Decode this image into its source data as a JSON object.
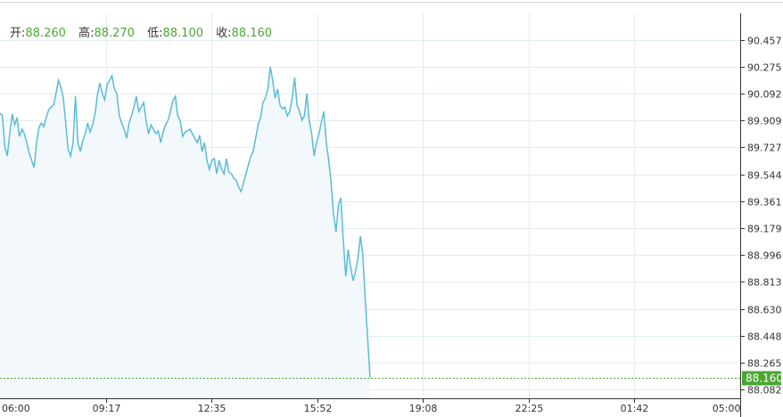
{
  "header": {
    "open_label": "开",
    "open_value": "88.260",
    "high_label": "高",
    "high_value": "88.270",
    "low_label": "低",
    "low_value": "88.100",
    "close_label": "收",
    "close_value": "88.160"
  },
  "chart_data": {
    "type": "area",
    "ylim": [
      88.082,
      90.457
    ],
    "y_ticks": [
      "90.457",
      "90.275",
      "90.092",
      "89.909",
      "89.727",
      "89.544",
      "89.361",
      "89.179",
      "88.996",
      "88.813",
      "88.630",
      "88.448",
      "88.265",
      "88.082"
    ],
    "x_ticks": [
      "06:00",
      "09:17",
      "12:35",
      "15:52",
      "19:08",
      "22:25",
      "01:42",
      "05:00"
    ],
    "grid": true,
    "current_price": "88.160",
    "colors": {
      "line": "#5bbcd6",
      "fill": "#f2f8fc",
      "grid": "#e3edf3",
      "current": "#4aa832"
    },
    "values": [
      89.96,
      89.942,
      89.73,
      89.669,
      89.821,
      89.954,
      89.881,
      89.93,
      89.802,
      89.851,
      89.821,
      89.76,
      89.687,
      89.639,
      89.59,
      89.76,
      89.863,
      89.893,
      89.869,
      89.93,
      89.984,
      90.002,
      90.015,
      90.093,
      90.184,
      90.136,
      90.063,
      89.893,
      89.712,
      89.669,
      89.76,
      90.075,
      89.76,
      89.699,
      89.772,
      89.821,
      89.893,
      89.833,
      89.881,
      89.954,
      90.081,
      90.166,
      90.093,
      90.051,
      90.154,
      90.184,
      90.215,
      90.124,
      90.093,
      89.942,
      89.893,
      89.851,
      89.79,
      89.893,
      89.942,
      90.002,
      90.075,
      89.972,
      90.002,
      90.033,
      89.912,
      89.821,
      89.881,
      89.851,
      89.821,
      89.839,
      89.76,
      89.833,
      89.881,
      89.912,
      89.972,
      90.045,
      90.075,
      89.942,
      89.912,
      89.802,
      89.833,
      89.839,
      89.851,
      89.821,
      89.79,
      89.76,
      89.809,
      89.699,
      89.76,
      89.639,
      89.578,
      89.639,
      89.651,
      89.548,
      89.639,
      89.578,
      89.548,
      89.651,
      89.56,
      89.548,
      89.518,
      89.505,
      89.457,
      89.427,
      89.487,
      89.548,
      89.609,
      89.669,
      89.699,
      89.79,
      89.881,
      89.93,
      90.033,
      90.063,
      90.124,
      90.275,
      90.184,
      90.063,
      90.124,
      90.015,
      89.99,
      90.002,
      89.942,
      89.972,
      90.063,
      90.202,
      90.015,
      89.972,
      89.912,
      89.942,
      90.093,
      89.912,
      89.821,
      89.669,
      89.76,
      89.821,
      89.899,
      89.972,
      89.76,
      89.639,
      89.487,
      89.275,
      89.154,
      89.336,
      89.384,
      89.093,
      88.851,
      89.033,
      88.912,
      88.821,
      88.881,
      88.972,
      89.124,
      89.002,
      88.699,
      88.427,
      88.16
    ]
  }
}
